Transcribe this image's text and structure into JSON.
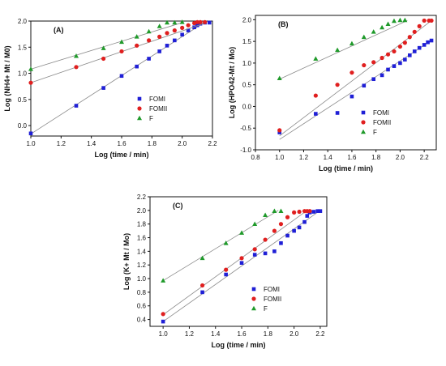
{
  "colors": {
    "FOMI": "#1f1fd6",
    "FOMII": "#e01f1f",
    "F": "#1f9a2a",
    "axis": "#111111",
    "fit": "#8a8a8a"
  },
  "chart_data": [
    {
      "type": "scatter",
      "panel_label": "(A)",
      "xlabel": "Log (time / min)",
      "ylabel": "Log (NH4+ Mt / M0)",
      "xlim": [
        1.0,
        2.2
      ],
      "ylim": [
        -0.2,
        2.0
      ],
      "xticks": [
        "1.0",
        "1.2",
        "1.4",
        "1.6",
        "1.8",
        "2.0",
        "2.2"
      ],
      "yticks": [
        "0.0",
        "0.5",
        "1.0",
        "1.5",
        "2.0"
      ],
      "legend_position": "bottom-right",
      "series": [
        {
          "name": "FOMI",
          "marker": "square",
          "fit": [
            [
              1.0,
              -0.16
            ],
            [
              2.16,
              2.0
            ]
          ],
          "x": [
            1.0,
            1.3,
            1.48,
            1.6,
            1.7,
            1.78,
            1.85,
            1.9,
            1.95,
            2.0,
            2.04,
            2.08,
            2.1,
            2.12,
            2.15,
            2.18
          ],
          "y": [
            -0.15,
            0.38,
            0.72,
            0.95,
            1.13,
            1.28,
            1.42,
            1.53,
            1.63,
            1.74,
            1.82,
            1.88,
            1.92,
            1.95,
            1.97,
            1.97
          ]
        },
        {
          "name": "FOMII",
          "marker": "circle",
          "fit": [
            [
              1.0,
              0.82
            ],
            [
              2.16,
              1.97
            ]
          ],
          "x": [
            1.0,
            1.3,
            1.48,
            1.6,
            1.7,
            1.78,
            1.85,
            1.9,
            1.95,
            2.0,
            2.04,
            2.08,
            2.1,
            2.12,
            2.15
          ],
          "y": [
            0.82,
            1.12,
            1.28,
            1.42,
            1.53,
            1.63,
            1.7,
            1.77,
            1.82,
            1.87,
            1.92,
            1.96,
            1.98,
            1.98,
            1.98
          ]
        },
        {
          "name": "F",
          "marker": "triangle",
          "fit": [
            [
              1.0,
              1.08
            ],
            [
              2.0,
              1.97
            ]
          ],
          "x": [
            1.0,
            1.3,
            1.48,
            1.6,
            1.7,
            1.78,
            1.85,
            1.9,
            1.95,
            2.0
          ],
          "y": [
            1.08,
            1.33,
            1.48,
            1.6,
            1.7,
            1.8,
            1.9,
            1.97,
            1.97,
            1.98
          ]
        }
      ]
    },
    {
      "type": "scatter",
      "panel_label": "(B)",
      "xlabel": "Log (time / min)",
      "ylabel": "Log (HPO42-Mt / Mo)",
      "xlim": [
        0.8,
        2.3
      ],
      "ylim": [
        -1.0,
        2.1
      ],
      "xticks": [
        "0.8",
        "1.0",
        "1.2",
        "1.4",
        "1.6",
        "1.8",
        "2.0",
        "2.2"
      ],
      "yticks": [
        "-1.0",
        "-0.5",
        "0.0",
        "0.5",
        "1.0",
        "1.5",
        "2.0"
      ],
      "legend_position": "bottom-right",
      "series": [
        {
          "name": "FOMI",
          "marker": "square",
          "fit": [
            [
              1.0,
              -0.76
            ],
            [
              2.26,
              1.52
            ]
          ],
          "x": [
            1.0,
            1.3,
            1.48,
            1.6,
            1.7,
            1.78,
            1.85,
            1.9,
            1.95,
            2.0,
            2.04,
            2.08,
            2.12,
            2.16,
            2.2,
            2.23,
            2.26
          ],
          "y": [
            -0.6,
            -0.17,
            -0.15,
            0.23,
            0.48,
            0.63,
            0.72,
            0.85,
            0.93,
            1.0,
            1.08,
            1.18,
            1.27,
            1.35,
            1.42,
            1.48,
            1.52
          ]
        },
        {
          "name": "FOMII",
          "marker": "circle",
          "fit": [
            [
              1.0,
              -0.68
            ],
            [
              2.26,
              1.98
            ]
          ],
          "x": [
            1.0,
            1.3,
            1.48,
            1.6,
            1.7,
            1.78,
            1.85,
            1.9,
            1.95,
            2.0,
            2.04,
            2.08,
            2.12,
            2.16,
            2.2,
            2.24,
            2.26
          ],
          "y": [
            -0.55,
            0.25,
            0.5,
            0.78,
            0.95,
            1.02,
            1.12,
            1.2,
            1.27,
            1.38,
            1.47,
            1.6,
            1.72,
            1.85,
            1.98,
            1.98,
            1.98
          ]
        },
        {
          "name": "F",
          "marker": "triangle",
          "fit": [
            [
              1.0,
              0.63
            ],
            [
              2.06,
              1.98
            ]
          ],
          "x": [
            1.0,
            1.3,
            1.48,
            1.6,
            1.7,
            1.78,
            1.85,
            1.9,
            1.95,
            2.0,
            2.04
          ],
          "y": [
            0.65,
            1.1,
            1.3,
            1.45,
            1.6,
            1.72,
            1.82,
            1.9,
            1.97,
            1.99,
            1.99
          ]
        }
      ]
    },
    {
      "type": "scatter",
      "panel_label": "(C)",
      "xlabel": "Log (time / min)",
      "ylabel": "Log (K+ Mt / Mo)",
      "xlim": [
        0.9,
        2.25
      ],
      "ylim": [
        0.3,
        2.2
      ],
      "xticks": [
        "1.0",
        "1.2",
        "1.4",
        "1.6",
        "1.8",
        "2.0",
        "2.2"
      ],
      "yticks": [
        "0.4",
        "0.6",
        "0.8",
        "1.0",
        "1.2",
        "1.4",
        "1.6",
        "1.8",
        "2.0",
        "2.2"
      ],
      "legend_position": "bottom-right",
      "series": [
        {
          "name": "FOMI",
          "marker": "square",
          "fit": [
            [
              1.0,
              0.37
            ],
            [
              2.2,
              2.0
            ]
          ],
          "x": [
            1.0,
            1.3,
            1.48,
            1.6,
            1.7,
            1.78,
            1.85,
            1.9,
            1.95,
            2.0,
            2.04,
            2.08,
            2.1,
            2.12,
            2.15,
            2.18,
            2.2
          ],
          "y": [
            0.37,
            0.8,
            1.06,
            1.23,
            1.35,
            1.37,
            1.4,
            1.52,
            1.63,
            1.7,
            1.75,
            1.83,
            1.92,
            1.97,
            1.98,
            1.99,
            1.99
          ]
        },
        {
          "name": "FOMII",
          "marker": "circle",
          "fit": [
            [
              1.0,
              0.47
            ],
            [
              2.1,
              2.0
            ]
          ],
          "x": [
            1.0,
            1.3,
            1.48,
            1.6,
            1.7,
            1.78,
            1.85,
            1.9,
            1.95,
            2.0,
            2.04,
            2.08,
            2.1,
            2.12
          ],
          "y": [
            0.48,
            0.9,
            1.13,
            1.3,
            1.43,
            1.57,
            1.7,
            1.8,
            1.9,
            1.97,
            1.98,
            1.99,
            1.99,
            1.99
          ]
        },
        {
          "name": "F",
          "marker": "triangle",
          "fit": [
            [
              1.0,
              0.97
            ],
            [
              1.88,
              2.0
            ]
          ],
          "x": [
            1.0,
            1.3,
            1.48,
            1.6,
            1.7,
            1.78,
            1.85,
            1.9
          ],
          "y": [
            0.97,
            1.3,
            1.52,
            1.67,
            1.8,
            1.93,
            1.99,
            1.99
          ]
        }
      ]
    }
  ]
}
